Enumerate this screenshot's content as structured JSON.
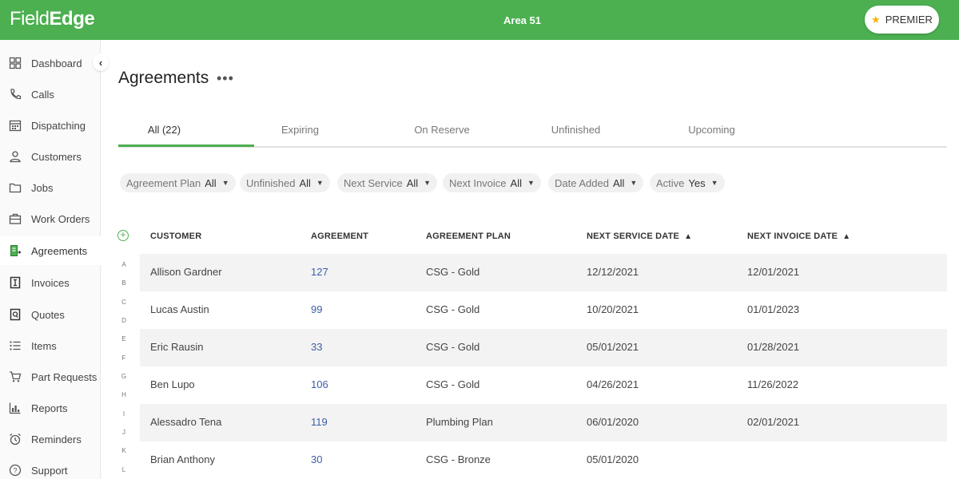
{
  "header": {
    "brand_part1": "Field",
    "brand_part2": "Edge",
    "area": "Area 51",
    "premier_label": "PREMIER",
    "premier_icon": "star-icon"
  },
  "sidebar": {
    "collapse_icon": "chevron-left-icon",
    "items": [
      {
        "label": "Dashboard",
        "icon": "dashboard-icon"
      },
      {
        "label": "Calls",
        "icon": "phone-icon"
      },
      {
        "label": "Dispatching",
        "icon": "calendar-grid-icon"
      },
      {
        "label": "Customers",
        "icon": "person-icon"
      },
      {
        "label": "Jobs",
        "icon": "folder-icon"
      },
      {
        "label": "Work Orders",
        "icon": "briefcase-icon"
      },
      {
        "label": "Agreements",
        "icon": "agreement-doc-icon"
      },
      {
        "label": "Invoices",
        "icon": "invoice-icon"
      },
      {
        "label": "Quotes",
        "icon": "quote-icon"
      },
      {
        "label": "Items",
        "icon": "list-icon"
      },
      {
        "label": "Part Requests",
        "icon": "cart-icon"
      },
      {
        "label": "Reports",
        "icon": "bar-chart-icon"
      },
      {
        "label": "Reminders",
        "icon": "alarm-clock-icon"
      },
      {
        "label": "Support",
        "icon": "help-icon"
      }
    ],
    "active": "Agreements"
  },
  "main": {
    "title": "Agreements",
    "more_label": "•••",
    "tabs": [
      {
        "label": "All (22)"
      },
      {
        "label": "Expiring"
      },
      {
        "label": "On Reserve"
      },
      {
        "label": "Unfinished"
      },
      {
        "label": "Upcoming"
      }
    ],
    "filters": [
      {
        "label": "Agreement Plan",
        "value": "All"
      },
      {
        "label": "Unfinished",
        "value": "All"
      },
      {
        "label": "Next Service",
        "value": "All"
      },
      {
        "label": "Next Invoice",
        "value": "All"
      },
      {
        "label": "Date Added",
        "value": "All"
      },
      {
        "label": "Active",
        "value": "Yes"
      }
    ],
    "table": {
      "headers": {
        "customer": "CUSTOMER",
        "agreement": "AGREEMENT",
        "plan": "AGREEMENT PLAN",
        "next_service": "NEXT SERVICE DATE",
        "next_invoice": "NEXT INVOICE DATE"
      },
      "alphabet": [
        "A",
        "B",
        "C",
        "D",
        "E",
        "F",
        "G",
        "H",
        "I",
        "J",
        "K",
        "L"
      ],
      "rows": [
        {
          "customer": "Allison Gardner",
          "agreement": "127",
          "plan": "CSG - Gold",
          "next_service": "12/12/2021",
          "next_invoice": "12/01/2021"
        },
        {
          "customer": "Lucas Austin",
          "agreement": "99",
          "plan": "CSG - Gold",
          "next_service": "10/20/2021",
          "next_invoice": "01/01/2023"
        },
        {
          "customer": "Eric Rausin",
          "agreement": "33",
          "plan": "CSG - Gold",
          "next_service": "05/01/2021",
          "next_invoice": "01/28/2021"
        },
        {
          "customer": "Ben Lupo",
          "agreement": "106",
          "plan": "CSG - Gold",
          "next_service": "04/26/2021",
          "next_invoice": "11/26/2022"
        },
        {
          "customer": "Alessadro Tena",
          "agreement": "119",
          "plan": "Plumbing Plan",
          "next_service": "06/01/2020",
          "next_invoice": "02/01/2021"
        },
        {
          "customer": "Brian Anthony",
          "agreement": "30",
          "plan": "CSG - Bronze",
          "next_service": "05/01/2020",
          "next_invoice": ""
        }
      ]
    }
  },
  "colors": {
    "brand_green": "#4cb050",
    "link_blue": "#3b5ea8",
    "star_gold": "#f5b400"
  }
}
